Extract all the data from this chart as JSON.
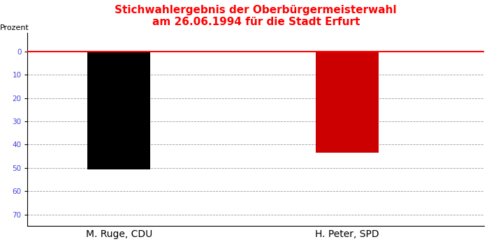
{
  "title_line1": "Stichwahlergebnis der Oberbürgermeisterwahl",
  "title_line2": "am 26.06.1994 für die Stadt Erfurt",
  "title_color": "#ff0000",
  "categories": [
    "M. Ruge, CDU",
    "H. Peter, SPD"
  ],
  "values": [
    50.7,
    43.5
  ],
  "bar_colors": [
    "#000000",
    "#cc0000"
  ],
  "ylabel": "Prozent",
  "ylabel_fontsize": 8,
  "tick_label_color": "#4444dd",
  "xlabel_color": "#4444dd",
  "xlabel_fontsize": 8,
  "ylim_bottom": -75,
  "ylim_top": 8,
  "yticks": [
    0,
    -10,
    -20,
    -30,
    -40,
    -50,
    -60,
    -70
  ],
  "ytick_labels": [
    "0",
    "10",
    "20",
    "30",
    "40",
    "50",
    "60",
    "70"
  ],
  "hline_color": "#ff0000",
  "hline_lw": 1.5,
  "grid_color": "#999999",
  "background_color": "#ffffff",
  "bar_width": 0.55,
  "bar_positions": [
    1,
    3
  ],
  "xlim": [
    0.2,
    4.2
  ],
  "top_grid_style": "dotted",
  "bottom_grid_style": "dashed",
  "spine_bottom_visible": true,
  "spine_left_visible": true
}
